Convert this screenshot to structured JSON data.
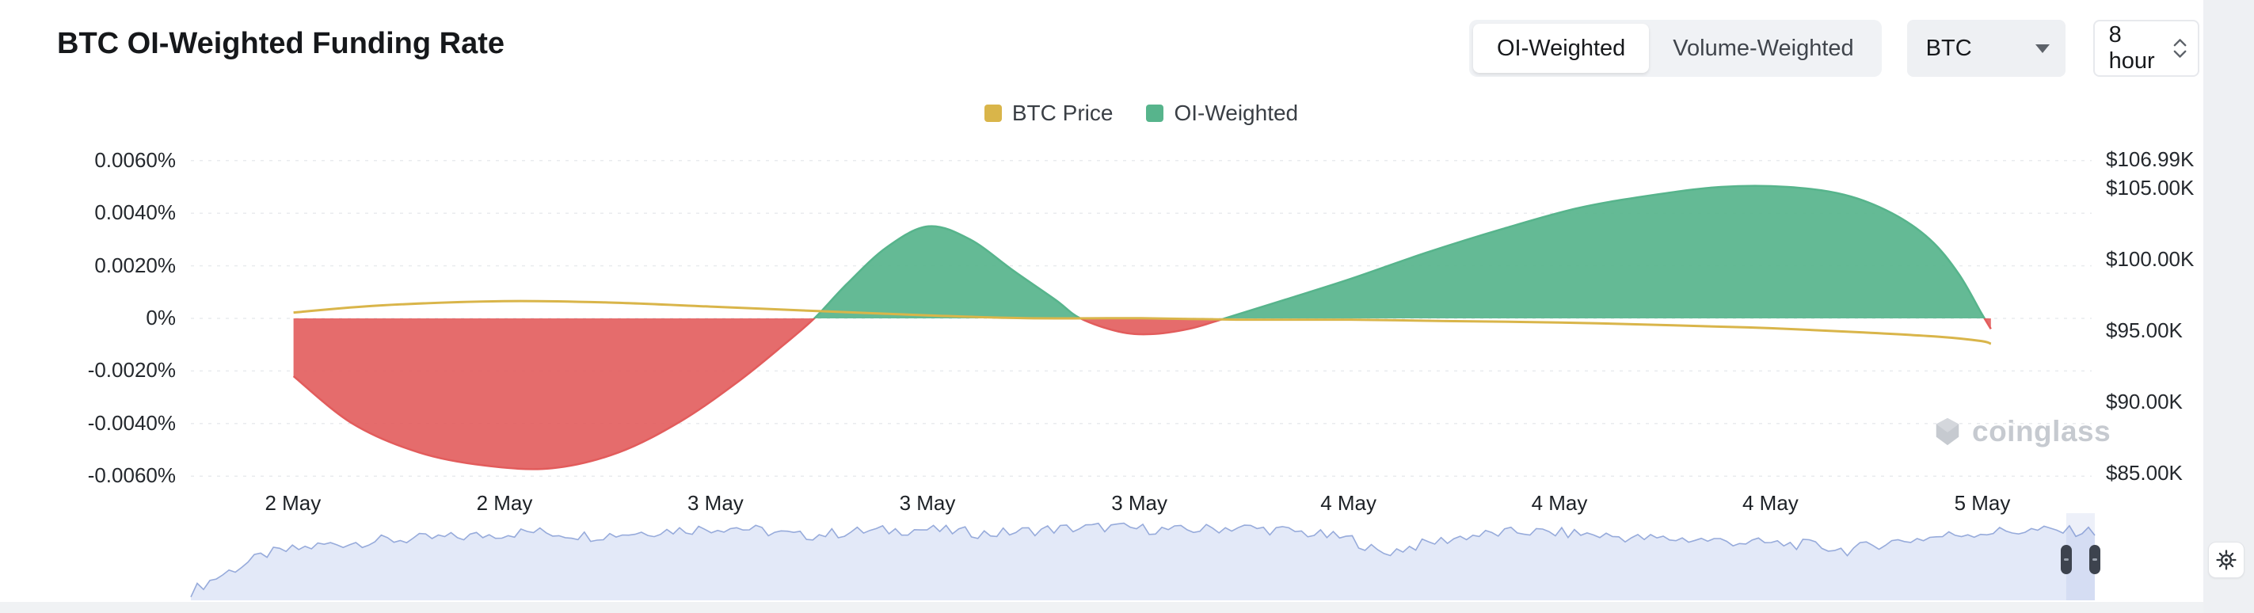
{
  "header": {
    "title": "BTC OI-Weighted Funding Rate",
    "mode_tabs": [
      {
        "label": "OI-Weighted",
        "active": true
      },
      {
        "label": "Volume-Weighted",
        "active": false
      }
    ],
    "symbol_select": {
      "value": "BTC"
    },
    "interval_select": {
      "value": "8 hour"
    }
  },
  "legend": [
    {
      "label": "BTC Price",
      "color": "#D9B54A"
    },
    {
      "label": "OI-Weighted",
      "color": "#57B48C"
    }
  ],
  "watermark_text": "coinglass",
  "chart_data": {
    "type": "area",
    "title": "BTC OI-Weighted Funding Rate",
    "grid": true,
    "legend_position": "top-center",
    "x_axis": {
      "tick_labels": [
        "2 May",
        "2 May",
        "3 May",
        "3 May",
        "3 May",
        "4 May",
        "4 May",
        "4 May",
        "5 May"
      ],
      "tick_pos": [
        0.0537,
        0.165,
        0.276,
        0.3875,
        0.499,
        0.609,
        0.72,
        0.831,
        0.9425
      ]
    },
    "left_axis": {
      "title": "Funding Rate",
      "unit": "%",
      "tick_labels": [
        "0.0060%",
        "0.0040%",
        "0.0020%",
        "0%",
        "-0.0020%",
        "-0.0040%",
        "-0.0060%"
      ],
      "tick_values": [
        0.006,
        0.004,
        0.002,
        0,
        -0.002,
        -0.004,
        -0.006
      ],
      "range": [
        -0.0072,
        0.0072
      ]
    },
    "right_axis": {
      "title": "BTC Price",
      "unit": "$K",
      "tick_labels": [
        "$106.99K",
        "$105.00K",
        "$100.00K",
        "$95.00K",
        "$90.00K",
        "$85.00K"
      ],
      "tick_values": [
        106.99,
        105,
        100,
        95,
        90,
        85
      ],
      "range": [
        83.5,
        107.8
      ]
    },
    "series": [
      {
        "name": "OI-Weighted",
        "kind": "area",
        "axis": "left",
        "unit": "%",
        "positive_color": "#57B48C",
        "negative_color": "#E25C5C",
        "points": [
          [
            0.054,
            -0.0022
          ],
          [
            0.085,
            -0.004
          ],
          [
            0.12,
            -0.0051
          ],
          [
            0.155,
            -0.0056
          ],
          [
            0.19,
            -0.0057
          ],
          [
            0.225,
            -0.0051
          ],
          [
            0.258,
            -0.0039
          ],
          [
            0.288,
            -0.0024
          ],
          [
            0.312,
            -0.001
          ],
          [
            0.328,
            0
          ],
          [
            0.345,
            0.0013
          ],
          [
            0.366,
            0.0027
          ],
          [
            0.388,
            0.0035
          ],
          [
            0.41,
            0.003
          ],
          [
            0.433,
            0.0018
          ],
          [
            0.455,
            0.0007
          ],
          [
            0.468,
            0
          ],
          [
            0.488,
            -0.0005
          ],
          [
            0.505,
            -0.0006
          ],
          [
            0.525,
            -0.0004
          ],
          [
            0.544,
            0
          ],
          [
            0.575,
            0.0007
          ],
          [
            0.61,
            0.0015
          ],
          [
            0.65,
            0.0025
          ],
          [
            0.69,
            0.0034
          ],
          [
            0.73,
            0.0042
          ],
          [
            0.77,
            0.0047
          ],
          [
            0.805,
            0.005
          ],
          [
            0.84,
            0.005
          ],
          [
            0.87,
            0.0047
          ],
          [
            0.895,
            0.004
          ],
          [
            0.915,
            0.003
          ],
          [
            0.93,
            0.0017
          ],
          [
            0.942,
            0.0002
          ],
          [
            0.947,
            -0.0004
          ]
        ]
      },
      {
        "name": "BTC Price",
        "kind": "line",
        "axis": "right",
        "unit": "$K",
        "color": "#D9B54A",
        "points": [
          [
            0.054,
            96.3
          ],
          [
            0.1,
            96.8
          ],
          [
            0.165,
            97.1
          ],
          [
            0.22,
            97.0
          ],
          [
            0.276,
            96.7
          ],
          [
            0.33,
            96.4
          ],
          [
            0.388,
            96.1
          ],
          [
            0.44,
            95.9
          ],
          [
            0.5,
            95.9
          ],
          [
            0.55,
            95.8
          ],
          [
            0.61,
            95.8
          ],
          [
            0.66,
            95.7
          ],
          [
            0.72,
            95.6
          ],
          [
            0.78,
            95.4
          ],
          [
            0.831,
            95.2
          ],
          [
            0.88,
            94.9
          ],
          [
            0.92,
            94.6
          ],
          [
            0.942,
            94.3
          ],
          [
            0.947,
            94.1
          ]
        ]
      }
    ],
    "navigator": {
      "selection_range": [
        0.985,
        1.0
      ],
      "fill_color": "#DCE3F6",
      "line_color": "#97ABDB",
      "base_points": [
        [
          0,
          0.08
        ],
        [
          0.015,
          0.22
        ],
        [
          0.04,
          0.42
        ],
        [
          0.07,
          0.5
        ],
        [
          0.1,
          0.54
        ],
        [
          0.14,
          0.57
        ],
        [
          0.18,
          0.62
        ],
        [
          0.21,
          0.58
        ],
        [
          0.25,
          0.63
        ],
        [
          0.285,
          0.66
        ],
        [
          0.32,
          0.58
        ],
        [
          0.35,
          0.62
        ],
        [
          0.385,
          0.64
        ],
        [
          0.42,
          0.6
        ],
        [
          0.45,
          0.64
        ],
        [
          0.48,
          0.66
        ],
        [
          0.52,
          0.63
        ],
        [
          0.55,
          0.66
        ],
        [
          0.58,
          0.62
        ],
        [
          0.61,
          0.55
        ],
        [
          0.625,
          0.42
        ],
        [
          0.645,
          0.5
        ],
        [
          0.67,
          0.58
        ],
        [
          0.7,
          0.62
        ],
        [
          0.73,
          0.6
        ],
        [
          0.76,
          0.56
        ],
        [
          0.79,
          0.55
        ],
        [
          0.82,
          0.52
        ],
        [
          0.85,
          0.5
        ],
        [
          0.87,
          0.45
        ],
        [
          0.89,
          0.52
        ],
        [
          0.91,
          0.56
        ],
        [
          0.93,
          0.6
        ],
        [
          0.95,
          0.62
        ],
        [
          0.97,
          0.63
        ],
        [
          1,
          0.62
        ]
      ]
    }
  }
}
